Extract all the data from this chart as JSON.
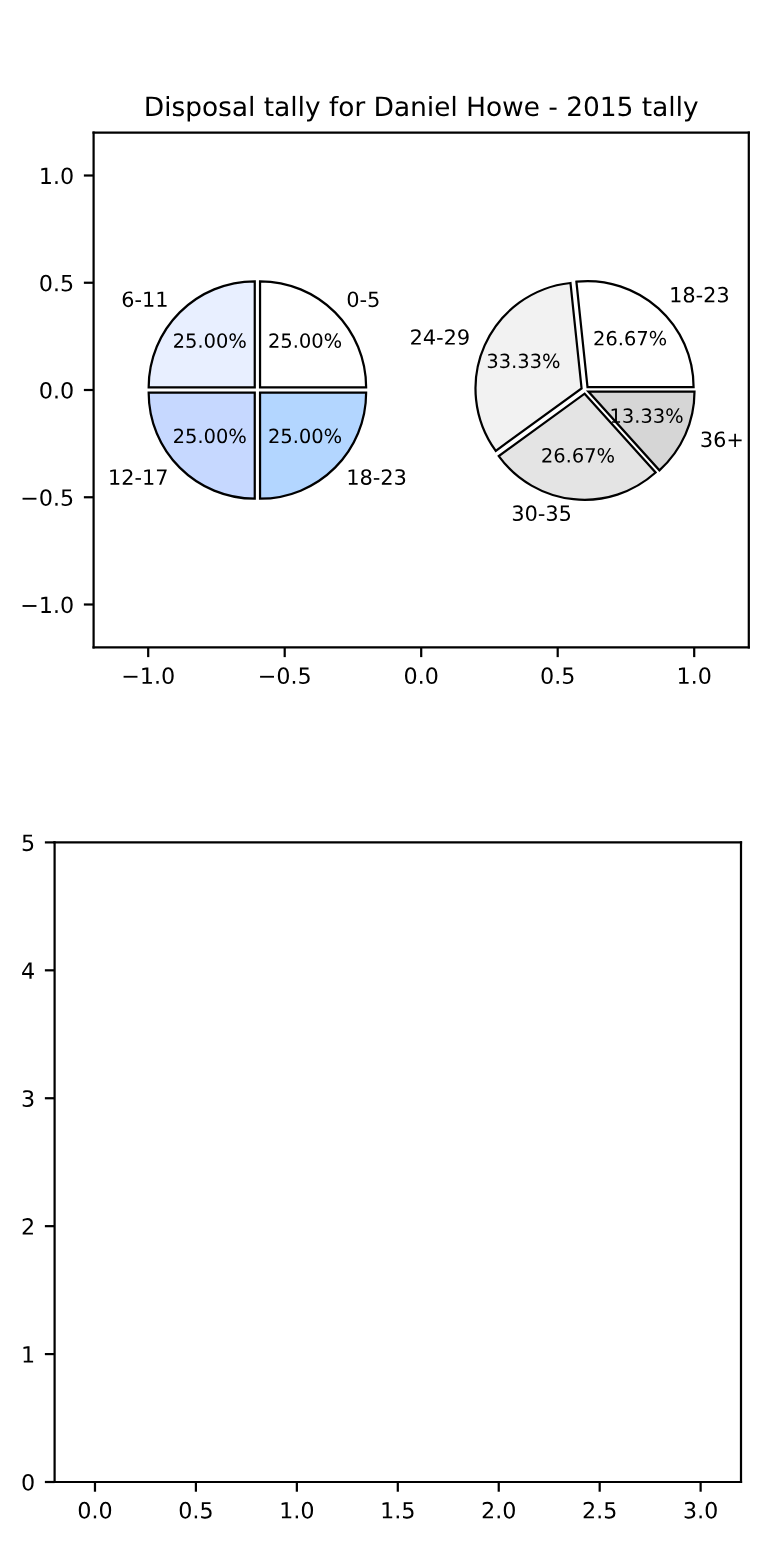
{
  "chart_data": [
    {
      "type": "line",
      "title": "Disposal tally for Daniel Howe - 2015 tally",
      "xlim": [
        -1.2,
        1.2
      ],
      "ylim": [
        -1.2,
        1.2
      ],
      "xticks": [
        {
          "value": -1,
          "label": "−1.0"
        },
        {
          "value": -0.5,
          "label": "−0.5"
        },
        {
          "value": 0,
          "label": "0.0"
        },
        {
          "value": 0.5,
          "label": "0.5"
        },
        {
          "value": 1,
          "label": "1.0"
        }
      ],
      "yticks": [
        {
          "value": -1,
          "label": "−1.0"
        },
        {
          "value": -0.5,
          "label": "−0.5"
        },
        {
          "value": 0,
          "label": "0.0"
        },
        {
          "value": 0.5,
          "label": "0.5"
        },
        {
          "value": 1,
          "label": "1.0"
        }
      ]
    },
    {
      "type": "pie",
      "categories": [
        "0-5",
        "6-11",
        "12-17",
        "18-23"
      ],
      "values": [
        25,
        25,
        25,
        25
      ],
      "value_labels": [
        "25.00%",
        "25.00%",
        "25.00%",
        "25.00%"
      ],
      "colors": [
        "#ffffff",
        "#e8efff",
        "#c6d8ff",
        "#b3d6ff"
      ]
    },
    {
      "type": "pie",
      "categories": [
        "18-23",
        "24-29",
        "30-35",
        "36+"
      ],
      "values": [
        26.67,
        33.33,
        26.67,
        13.33
      ],
      "value_labels": [
        "26.67%",
        "33.33%",
        "26.67%",
        "13.33%"
      ],
      "colors": [
        "#ffffff",
        "#f2f2f2",
        "#e4e4e4",
        "#d6d6d6"
      ]
    },
    {
      "type": "line",
      "xlim": [
        -0.2,
        3.2
      ],
      "ylim": [
        0,
        5
      ],
      "xticks": [
        {
          "value": 0,
          "label": "0.0"
        },
        {
          "value": 0.5,
          "label": "0.5"
        },
        {
          "value": 1,
          "label": "1.0"
        },
        {
          "value": 1.5,
          "label": "1.5"
        },
        {
          "value": 2,
          "label": "2.0"
        },
        {
          "value": 2.5,
          "label": "2.5"
        },
        {
          "value": 3,
          "label": "3.0"
        }
      ],
      "yticks": [
        0,
        1,
        2,
        3,
        4,
        5
      ]
    }
  ]
}
